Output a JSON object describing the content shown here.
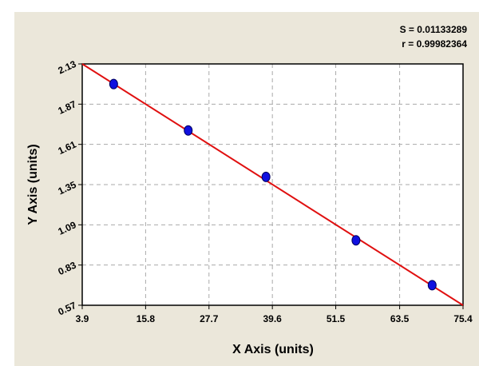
{
  "chart_data": {
    "type": "scatter",
    "x_label": "X Axis (units)",
    "y_label": "Y Axis (units)",
    "annotations": [
      "S = 0.01133289",
      "r = 0.99982364"
    ],
    "x": [
      9.8,
      23.8,
      38.4,
      55.3,
      69.6
    ],
    "values": [
      2.0,
      1.7,
      1.4,
      0.99,
      0.7
    ],
    "color": "#1010e0",
    "fit": {
      "x": [
        3.9,
        75.4
      ],
      "y": [
        2.13,
        0.57
      ],
      "color": "#e01010"
    },
    "xlim": [
      3.9,
      75.4
    ],
    "xticks": [
      3.9,
      15.8,
      27.7,
      39.6,
      51.5,
      63.5,
      75.4
    ],
    "ylim": [
      0.57,
      2.13
    ],
    "yticks": [
      0.57,
      0.83,
      1.09,
      1.35,
      1.61,
      1.87,
      2.13
    ],
    "grid": true
  }
}
